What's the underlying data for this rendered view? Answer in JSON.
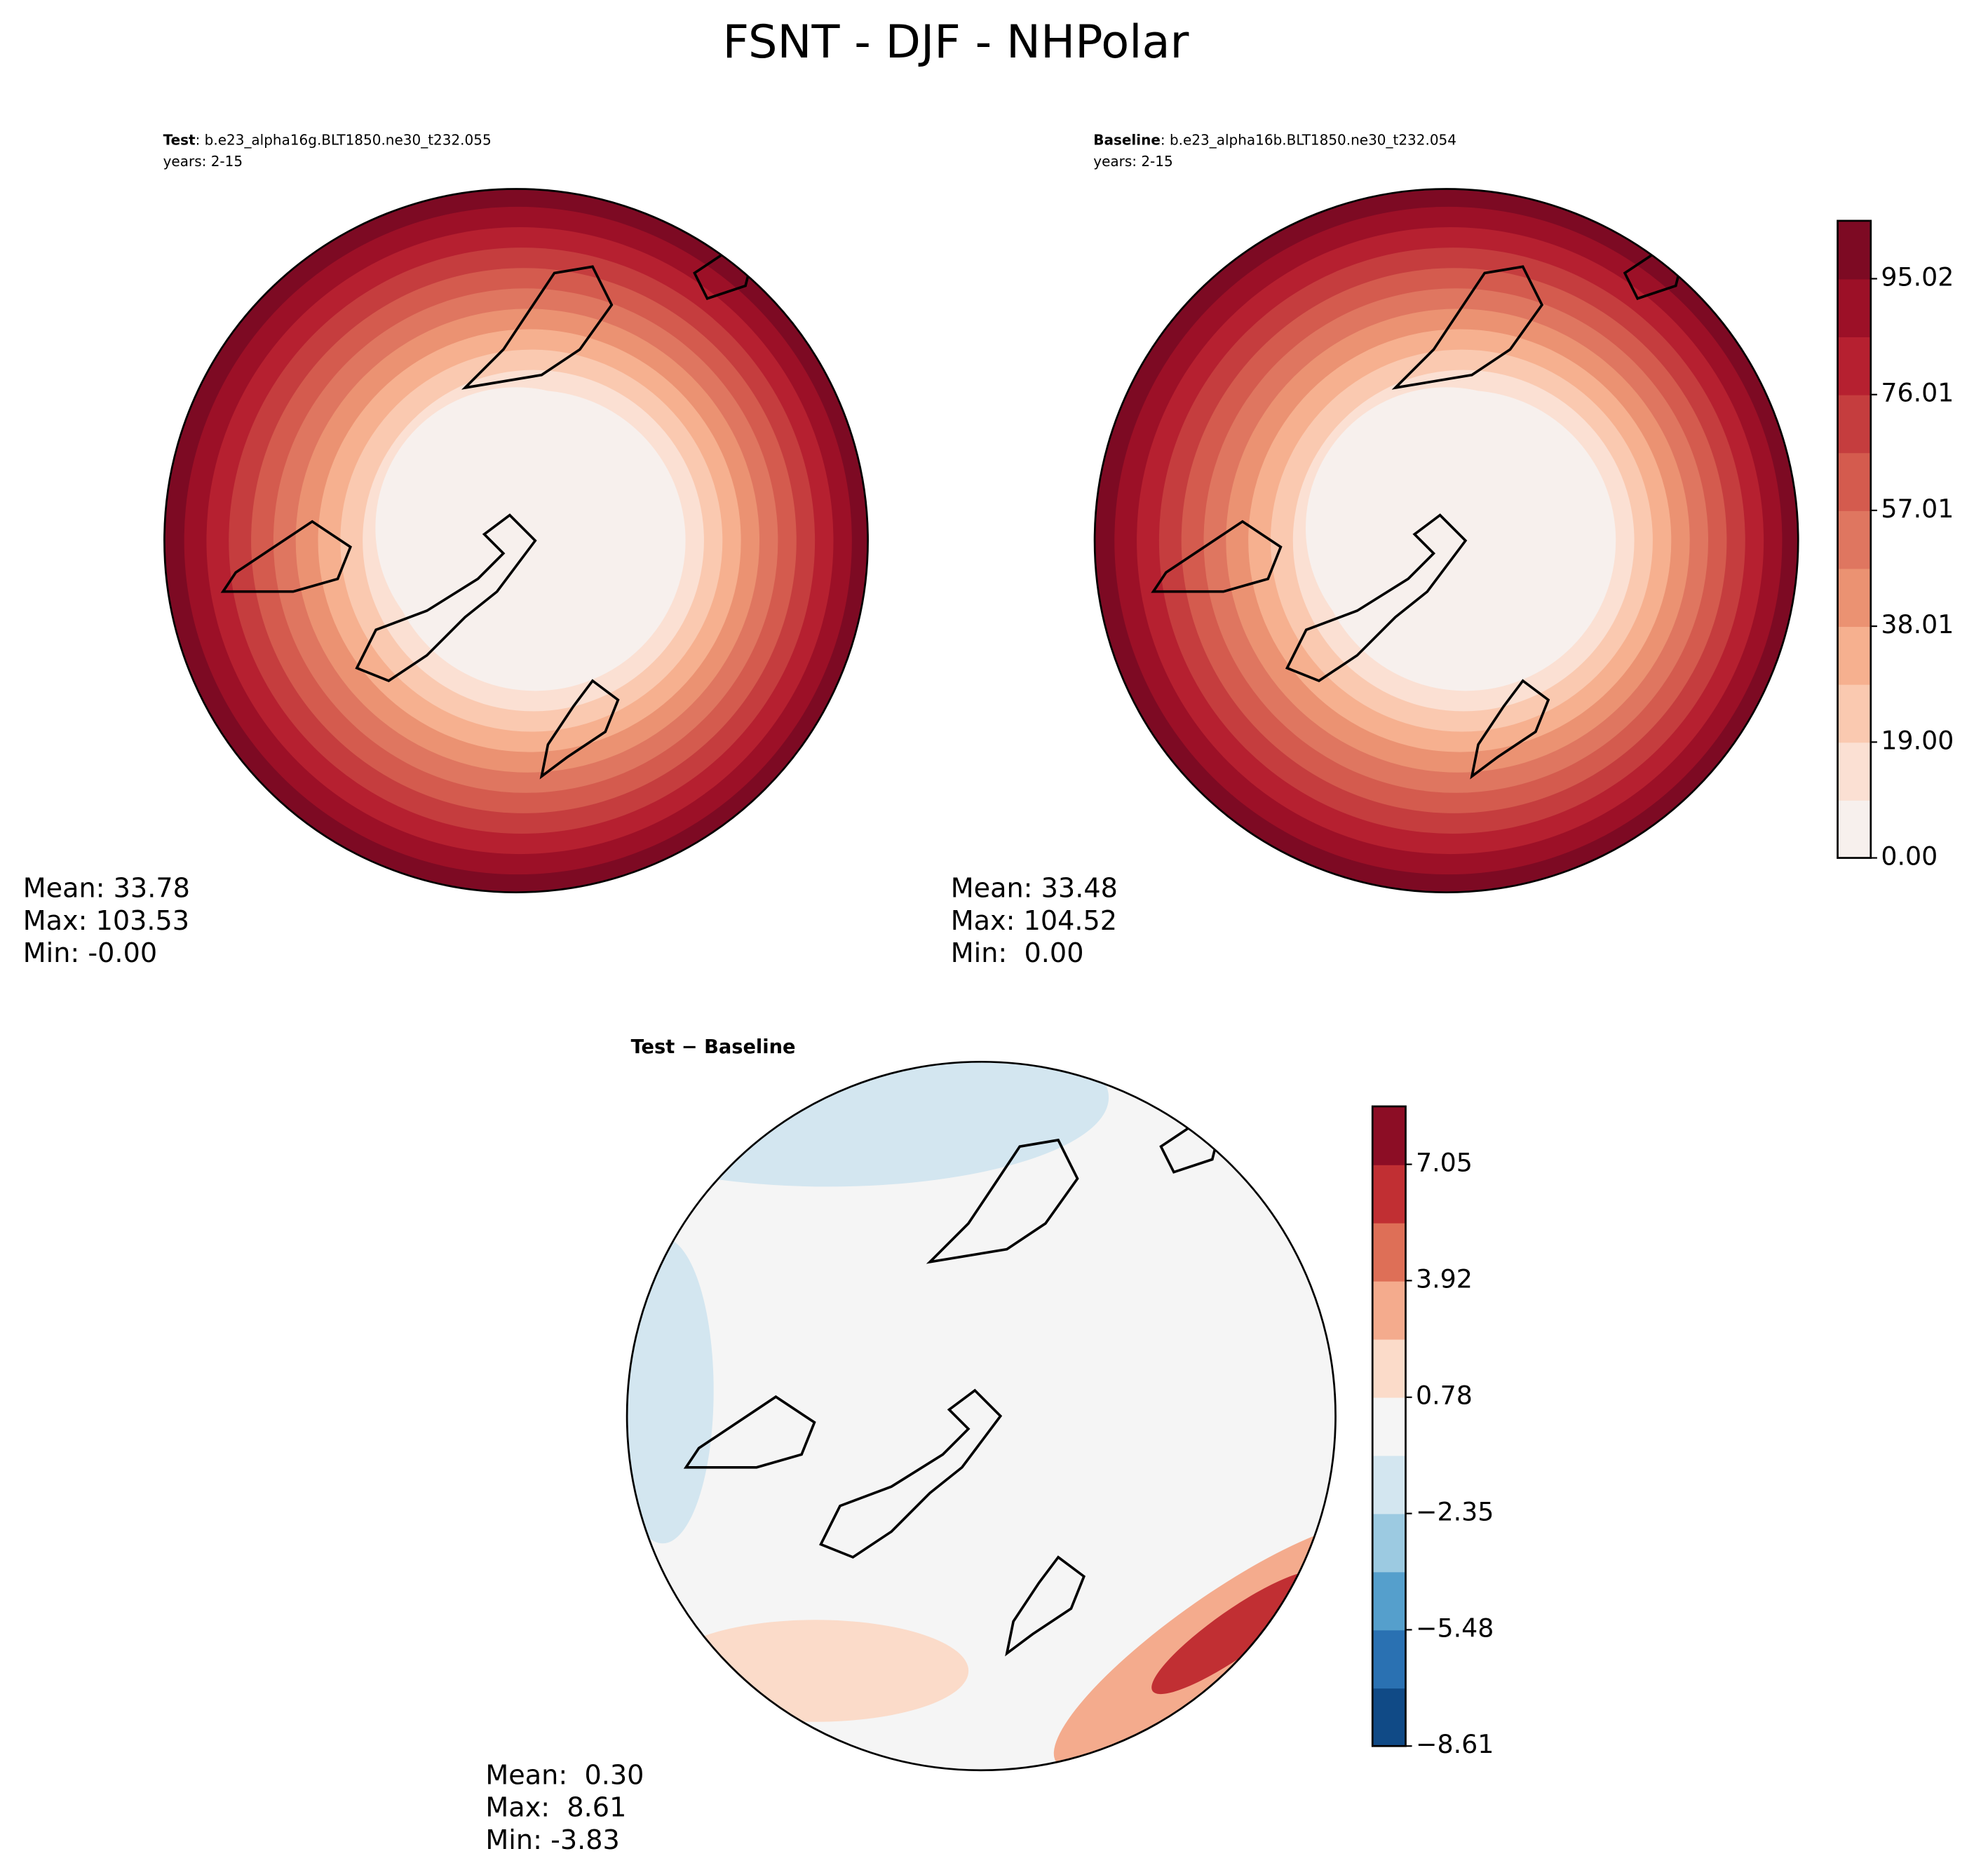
{
  "title": "FSNT - DJF - NHPolar",
  "panels": [
    {
      "label": "Test",
      "case": ": b.e23_alpha16g.BLT1850.ne30_t232.055",
      "years": "years: 2-15",
      "stats": [
        "Mean: 33.78",
        "Max: 103.53",
        "Min: -0.00"
      ]
    },
    {
      "label": "Baseline",
      "case": ": b.e23_alpha16b.BLT1850.ne30_t232.054",
      "years": "years: 2-15",
      "stats": [
        "Mean: 33.48",
        "Max: 104.52",
        "Min:  0.00"
      ]
    }
  ],
  "diff": {
    "title": "Test − Baseline",
    "stats": [
      "Mean:  0.30",
      "Max:  8.61",
      "Min: -3.83"
    ]
  },
  "colorbars": [
    {
      "lim": [
        0,
        104.52
      ],
      "ticks": [
        {
          "value": 0,
          "label": "0.00"
        },
        {
          "value": 19.0,
          "label": "19.00"
        },
        {
          "value": 38.01,
          "label": "38.01"
        },
        {
          "value": 57.01,
          "label": "57.01"
        },
        {
          "value": 76.01,
          "label": "76.01"
        },
        {
          "value": 95.02,
          "label": "95.02"
        }
      ],
      "colors": [
        "#f7f0ed",
        "#fbe0d3",
        "#fac9b0",
        "#f6b08f",
        "#eb9272",
        "#df7660",
        "#d45b4e",
        "#c53d3e",
        "#b62030",
        "#9c1027",
        "#7d0a23"
      ]
    },
    {
      "lim": [
        -8.61,
        8.61
      ],
      "ticks": [
        {
          "value": -8.61,
          "label": "−8.61"
        },
        {
          "value": -5.48,
          "label": "−5.48"
        },
        {
          "value": -2.35,
          "label": "−2.35"
        },
        {
          "value": 0.78,
          "label": "0.78"
        },
        {
          "value": 3.92,
          "label": "3.92"
        },
        {
          "value": 7.05,
          "label": "7.05"
        }
      ],
      "colors": [
        "#104a86",
        "#2a71b2",
        "#559fcc",
        "#9ccae1",
        "#d3e6f0",
        "#f5f5f5",
        "#fbdbc9",
        "#f4ab8d",
        "#de6f57",
        "#c12f33",
        "#8c0d25"
      ]
    }
  ]
}
